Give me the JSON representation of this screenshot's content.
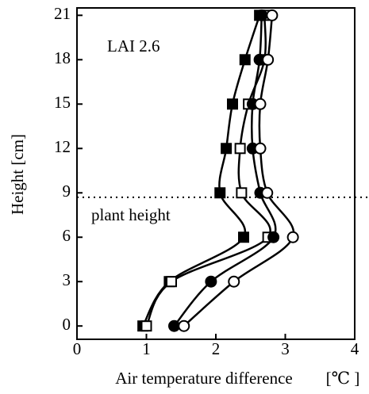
{
  "chart_data": {
    "type": "line",
    "x_label": "Air temperature difference",
    "x_unit": "[℃ ]",
    "y_label": "Height  [cm]",
    "annotations": [
      "LAI 2.6",
      "plant height"
    ],
    "reference_line": {
      "y": 8.7,
      "style": "dotted"
    },
    "y": [
      0,
      3,
      6,
      9,
      12,
      15,
      18,
      21
    ],
    "series": [
      {
        "color": "#000000",
        "marker": "square",
        "filled": true,
        "values": [
          0.95,
          1.33,
          2.4,
          2.06,
          2.15,
          2.24,
          2.42,
          2.63
        ]
      },
      {
        "color": "#000000",
        "marker": "square",
        "filled": false,
        "values": [
          1.0,
          1.36,
          2.75,
          2.37,
          2.35,
          2.47,
          2.7,
          2.7
        ]
      },
      {
        "color": "#000000",
        "marker": "circle",
        "filled": true,
        "values": [
          1.4,
          1.93,
          2.83,
          2.64,
          2.53,
          2.53,
          2.63,
          2.66
        ]
      },
      {
        "color": "#000000",
        "marker": "circle",
        "filled": false,
        "values": [
          1.54,
          2.26,
          3.11,
          2.74,
          2.64,
          2.64,
          2.75,
          2.81
        ]
      }
    ],
    "xlim": [
      0,
      4
    ],
    "xticks": [
      0,
      1,
      2,
      3,
      4
    ],
    "ylim": [
      -0.9,
      21.5
    ],
    "yticks": [
      0,
      3,
      6,
      9,
      12,
      15,
      18,
      21
    ],
    "grid": false
  }
}
